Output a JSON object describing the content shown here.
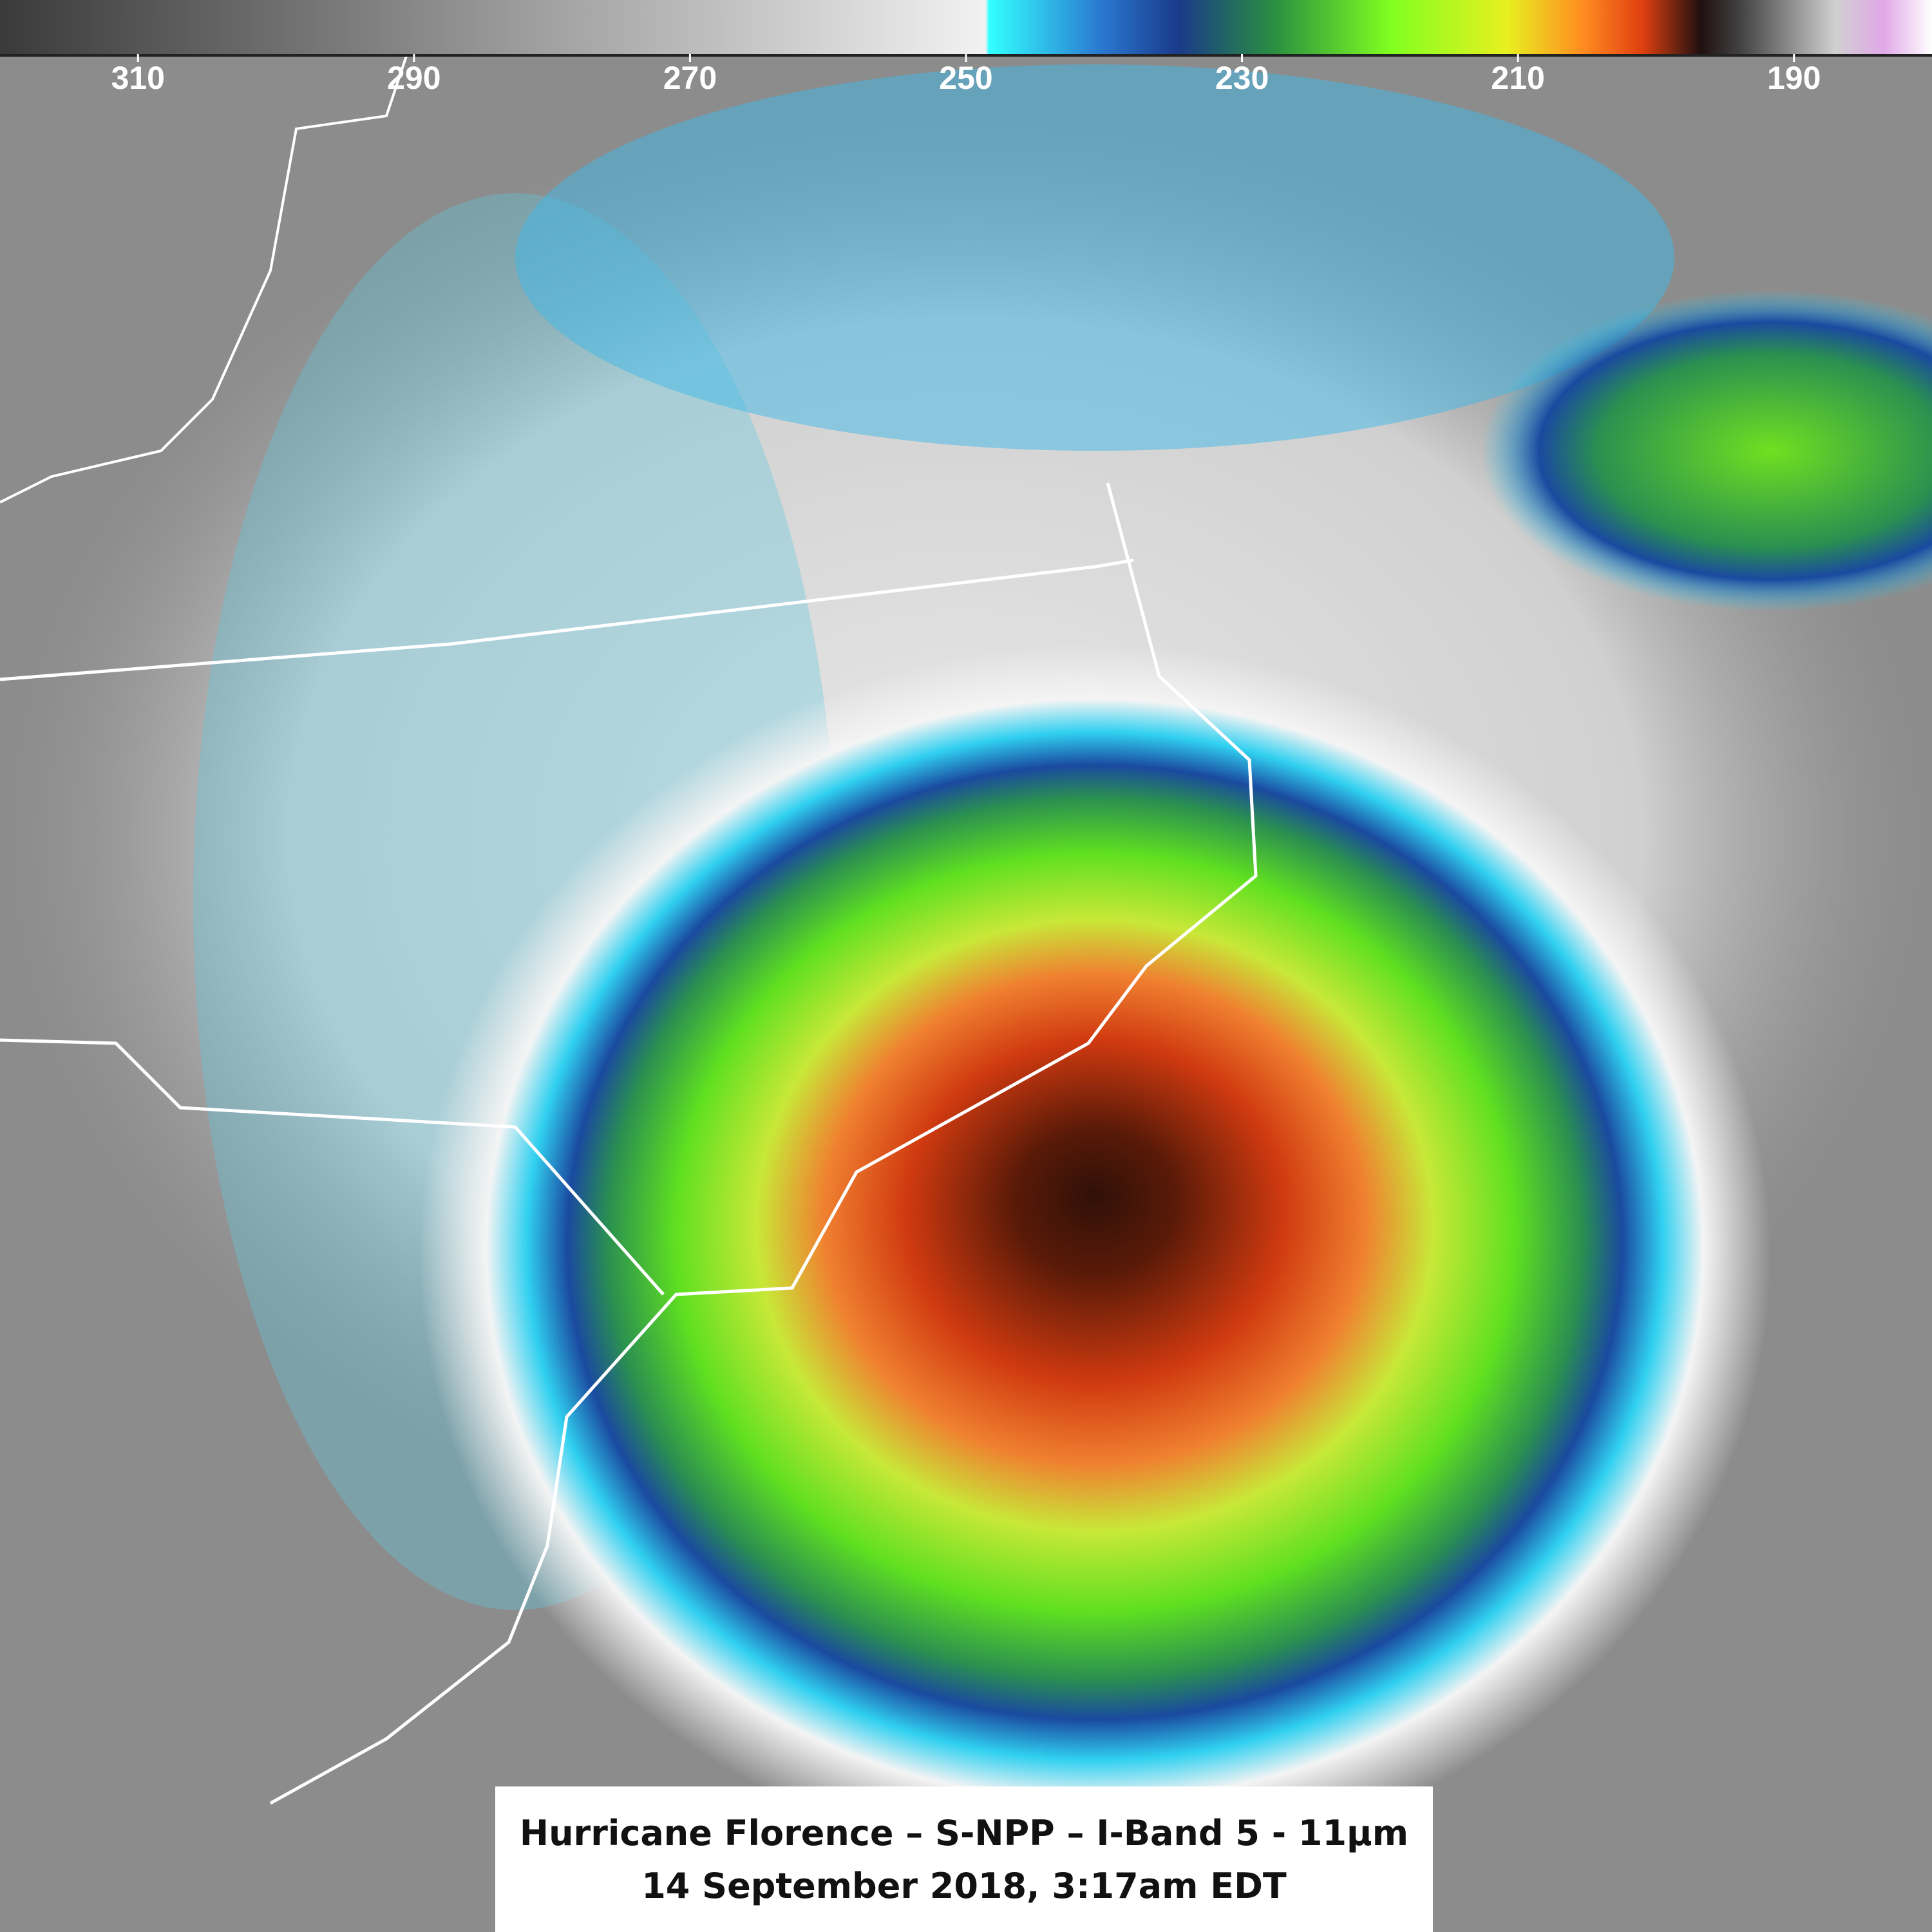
{
  "colorbar": {
    "range": [
      320,
      180
    ],
    "ticks": [
      310,
      290,
      270,
      250,
      230,
      210,
      190
    ]
  },
  "caption": {
    "line1": "Hurricane Florence – S-NPP – I-Band 5 - 11μm",
    "line2": "14 September 2018, 3:17am EDT"
  }
}
